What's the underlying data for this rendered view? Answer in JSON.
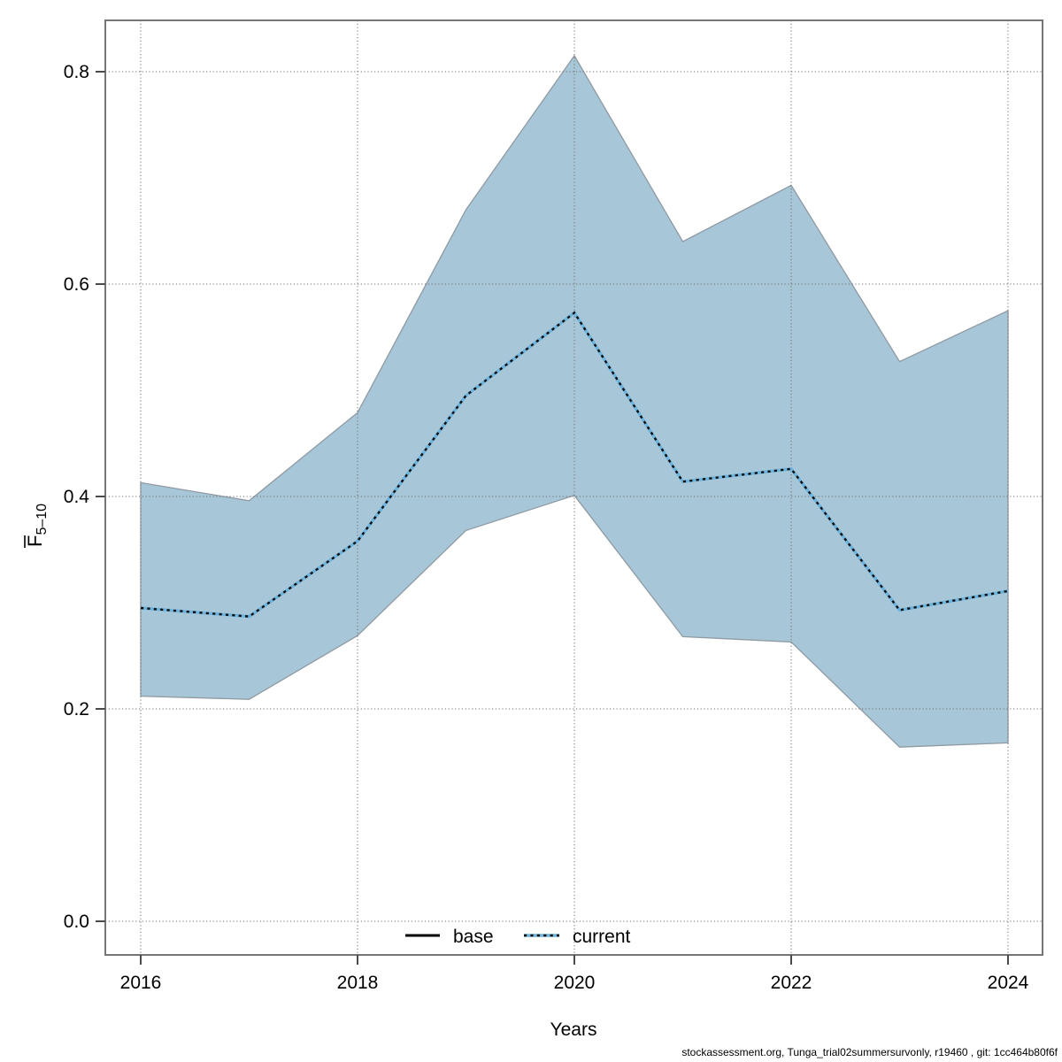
{
  "footer": {
    "text": "stockassessment.org, Tunga_trial02summersurvonly, r19460 , git: 1cc464b80f6f"
  },
  "chart_data": {
    "type": "line",
    "title": "",
    "xlabel": "Years",
    "ylabel": "F̄5–10",
    "ylabel_letter": "F",
    "ylabel_sub": "5–10",
    "ylabel_has_overbar": true,
    "x": [
      2016,
      2017,
      2018,
      2019,
      2020,
      2021,
      2022,
      2023,
      2024
    ],
    "series": [
      {
        "name": "current",
        "values": [
          0.295,
          0.287,
          0.358,
          0.495,
          0.573,
          0.414,
          0.426,
          0.293,
          0.311
        ]
      }
    ],
    "band": {
      "name": "current-confidence-interval",
      "upper": [
        0.413,
        0.396,
        0.479,
        0.67,
        0.815,
        0.64,
        0.693,
        0.527,
        0.575
      ],
      "lower": [
        0.212,
        0.209,
        0.269,
        0.368,
        0.401,
        0.268,
        0.263,
        0.164,
        0.168
      ]
    },
    "x_ticks": [
      2016,
      2018,
      2020,
      2022,
      2024
    ],
    "x_tick_labels": [
      "2016",
      "2018",
      "2020",
      "2022",
      "2024"
    ],
    "y_ticks": [
      0.0,
      0.2,
      0.4,
      0.6,
      0.8
    ],
    "y_tick_labels": [
      "0.0",
      "0.2",
      "0.4",
      "0.6",
      "0.8"
    ],
    "xlim": [
      2015.67,
      2024.32
    ],
    "ylim": [
      -0.032,
      0.848
    ],
    "grid": "dotted",
    "legend": {
      "position": "bottom-center-inside",
      "entries": [
        {
          "label": "base",
          "line_style": "solid",
          "color": "#000000"
        },
        {
          "label": "current",
          "line_style": "dotted",
          "color": "#68b1dc"
        }
      ]
    },
    "colors": {
      "band_fill": "#a7c6d7",
      "band_border": "#8f9aa3",
      "current_line_under": "#6cb4de",
      "current_line_dash": "#0d0d0d",
      "base_line": "#000000",
      "grid_line": "#6e6e6e",
      "box": "#757575",
      "tick": "#4a4a4a",
      "text": "#000000"
    }
  }
}
